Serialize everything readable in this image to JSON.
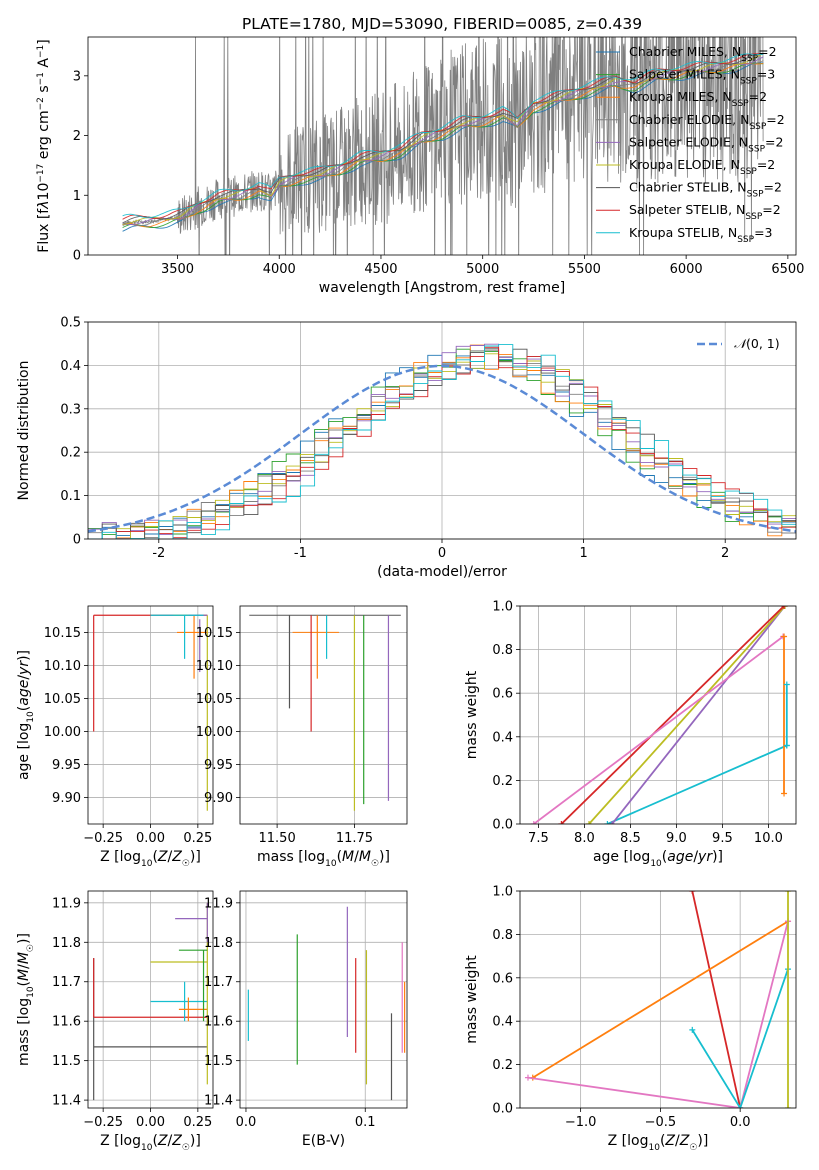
{
  "figure": {
    "title": "PLATE=1780, MJD=53090, FIBERID=0085, z=0.439"
  },
  "colors": {
    "Chabrier MILES": "#1f77b4",
    "Salpeter MILES": "#2ca02c",
    "Kroupa MILES": "#ff7f0e",
    "Chabrier ELODIE": "#808080",
    "Salpeter ELODIE": "#9467bd",
    "Kroupa ELODIE": "#bcbd22",
    "Chabrier STELIB": "#555555",
    "Salpeter STELIB": "#d62728",
    "Kroupa STELIB": "#17becf",
    "data": "#7f7f7f",
    "normal": "#5b8bd6"
  },
  "models": [
    {
      "name": "Chabrier MILES",
      "nssp": "2"
    },
    {
      "name": "Salpeter MILES",
      "nssp": "3"
    },
    {
      "name": "Kroupa MILES",
      "nssp": "2"
    },
    {
      "name": "Chabrier ELODIE",
      "nssp": "2"
    },
    {
      "name": "Salpeter ELODIE",
      "nssp": "2"
    },
    {
      "name": "Kroupa ELODIE",
      "nssp": "2"
    },
    {
      "name": "Chabrier STELIB",
      "nssp": "2"
    },
    {
      "name": "Salpeter STELIB",
      "nssp": "2"
    },
    {
      "name": "Kroupa STELIB",
      "nssp": "3"
    }
  ],
  "chart_data": [
    {
      "id": "spectrum",
      "type": "line",
      "xlabel": "wavelength [Angstrom, rest frame]",
      "ylabel_html": "Flux [f<tspan font-style='italic'>λ</tspan>10<tspan baseline-shift='super' font-size='9'>−17</tspan> erg cm<tspan baseline-shift='super' font-size='9'>−2</tspan> s<tspan baseline-shift='super' font-size='9'>−1</tspan> A<tspan baseline-shift='super' font-size='9'>−1</tspan>]",
      "xlim": [
        3060,
        6540
      ],
      "ylim": [
        0,
        3.65
      ],
      "xticks": [
        3500,
        4000,
        4500,
        5000,
        5500,
        6000,
        6500
      ],
      "yticks": [
        0,
        1,
        2,
        3
      ],
      "grid": false,
      "legend": "top-right",
      "continuum": [
        [
          3200,
          0.5
        ],
        [
          3270,
          0.55
        ],
        [
          3350,
          0.56
        ],
        [
          3450,
          0.6
        ],
        [
          3520,
          0.65
        ],
        [
          3600,
          0.8
        ],
        [
          3700,
          0.95
        ],
        [
          3800,
          1.0
        ],
        [
          3900,
          1.1
        ],
        [
          3960,
          1.0
        ],
        [
          4000,
          1.2
        ],
        [
          4100,
          1.3
        ],
        [
          4200,
          1.35
        ],
        [
          4300,
          1.45
        ],
        [
          4400,
          1.6
        ],
        [
          4500,
          1.65
        ],
        [
          4600,
          1.75
        ],
        [
          4700,
          1.95
        ],
        [
          4800,
          2.05
        ],
        [
          4900,
          2.2
        ],
        [
          5000,
          2.25
        ],
        [
          5100,
          2.35
        ],
        [
          5170,
          2.2
        ],
        [
          5250,
          2.5
        ],
        [
          5350,
          2.6
        ],
        [
          5450,
          2.7
        ],
        [
          5550,
          2.8
        ],
        [
          5650,
          2.9
        ],
        [
          5750,
          2.85
        ],
        [
          5850,
          3.0
        ],
        [
          5950,
          3.05
        ],
        [
          6050,
          3.1
        ],
        [
          6150,
          3.15
        ],
        [
          6250,
          3.2
        ],
        [
          6380,
          3.3
        ]
      ],
      "data_range": [
        3230,
        6380
      ]
    },
    {
      "id": "residuals",
      "type": "line",
      "xlabel": "(data-model)/error",
      "ylabel": "Normed distribution",
      "xlim": [
        -2.5,
        2.5
      ],
      "ylim": [
        0,
        0.5
      ],
      "xticks": [
        -2,
        -1,
        0,
        1,
        2
      ],
      "yticks": [
        0.0,
        0.1,
        0.2,
        0.3,
        0.4,
        0.5
      ],
      "grid": true,
      "legend": "top-right",
      "legend_label": "N(0,1)",
      "hist_peak": 0.42,
      "hist_center": 0.3,
      "hist_sigma": 0.95
    },
    {
      "id": "age_vs_Z",
      "type": "scatter",
      "xlabel_html": "Z [log<tspan baseline-shift='sub' font-size='9'>10</tspan>(<tspan font-style='italic'>Z</tspan>/<tspan font-style='italic'>Z</tspan><tspan baseline-shift='sub' font-size='9'>☉</tspan>)]",
      "ylabel_html": "age  [log<tspan baseline-shift='sub' font-size='9'>10</tspan>(<tspan font-style='italic'>age</tspan>/<tspan font-style='italic'>yr</tspan>)]",
      "xlim": [
        -0.33,
        0.33
      ],
      "ylim": [
        9.86,
        10.19
      ],
      "xticks": [
        -0.25,
        0.0,
        0.25
      ],
      "xticklabels": [
        "−0.25",
        "0.00",
        "0.25"
      ],
      "yticks": [
        9.9,
        9.95,
        10.0,
        10.05,
        10.1,
        10.15
      ],
      "yticklabels": [
        "9.90",
        "9.95",
        "10.00",
        "10.05",
        "10.10",
        "10.15"
      ],
      "grid": true,
      "segments": [
        {
          "model": "Salpeter STELIB",
          "h": [
            -0.3,
            0.3,
            10.176
          ],
          "v": [
            -0.3,
            10.0,
            10.176
          ]
        },
        {
          "model": "Kroupa ELODIE",
          "h": [
            0.12,
            0.3,
            10.176
          ],
          "v": [
            0.3,
            9.88,
            10.176
          ]
        },
        {
          "model": "Kroupa MILES",
          "h": [
            0.14,
            0.3,
            10.15
          ],
          "v": [
            0.23,
            10.08,
            10.176
          ]
        },
        {
          "model": "Salpeter ELODIE",
          "h": [
            0.2,
            0.3,
            10.176
          ],
          "v": [
            0.26,
            10.09,
            10.17
          ]
        },
        {
          "model": "Kroupa STELIB",
          "h": [
            0.0,
            0.28,
            10.176
          ],
          "v": [
            0.18,
            10.11,
            10.176
          ]
        }
      ]
    },
    {
      "id": "age_vs_mass",
      "type": "scatter",
      "xlabel_html": "mass [log<tspan baseline-shift='sub' font-size='9'>10</tspan>(<tspan font-style='italic'>M</tspan>/<tspan font-style='italic'>M</tspan><tspan baseline-shift='sub' font-size='9'>☉</tspan>)]",
      "xlim": [
        11.38,
        11.92
      ],
      "ylim": [
        9.86,
        10.19
      ],
      "xticks": [
        11.5,
        11.75
      ],
      "xticklabels": [
        "11.50",
        "11.75"
      ],
      "yticks": [
        9.9,
        9.95,
        10.0,
        10.05,
        10.1,
        10.15
      ],
      "yticklabels": [
        "9.90",
        "9.95",
        "10.00",
        "10.05",
        "10.10",
        "10.15"
      ],
      "grid": true,
      "verticals": [
        {
          "model": "Chabrier STELIB",
          "x": 11.54,
          "y0": 10.035
        },
        {
          "model": "Salpeter STELIB",
          "x": 11.61,
          "y0": 10.0
        },
        {
          "model": "Kroupa MILES",
          "x": 11.63,
          "y0": 10.08
        },
        {
          "model": "Kroupa STELIB",
          "x": 11.66,
          "y0": 10.11
        },
        {
          "model": "Kroupa ELODIE",
          "x": 11.75,
          "y0": 9.88
        },
        {
          "model": "Salpeter ELODIE",
          "x": 11.86,
          "y0": 9.895
        },
        {
          "model": "Salpeter MILES",
          "x": 11.78,
          "y0": 9.89
        }
      ],
      "top": 10.176
    },
    {
      "id": "massweight_vs_age",
      "type": "line",
      "xlabel_html": "age  [log<tspan baseline-shift='sub' font-size='9'>10</tspan>(<tspan font-style='italic'>age</tspan>/<tspan font-style='italic'>yr</tspan>)]",
      "ylabel": "mass weight",
      "xlim": [
        7.3,
        10.3
      ],
      "ylim": [
        0,
        1.0
      ],
      "xticks": [
        7.5,
        8.0,
        8.5,
        9.0,
        9.5,
        10.0
      ],
      "xticklabels": [
        "7.5",
        "8.0",
        "8.5",
        "9.0",
        "9.5",
        "10.0"
      ],
      "yticks": [
        0,
        0.2,
        0.4,
        0.6,
        0.8,
        1.0
      ],
      "yticklabels": [
        "0.0",
        "0.2",
        "0.4",
        "0.6",
        "0.8",
        "1.0"
      ],
      "grid": true,
      "lines": [
        {
          "model": "Kroupa STELIB",
          "pts": [
            [
              8.25,
              0.0
            ],
            [
              10.2,
              0.36
            ]
          ]
        },
        {
          "model": "Salpeter ELODIE",
          "pts": [
            [
              8.3,
              0.0
            ],
            [
              10.18,
              1.0
            ]
          ]
        },
        {
          "model": "Kroupa ELODIE",
          "pts": [
            [
              8.05,
              0.0
            ],
            [
              10.18,
              1.0
            ]
          ]
        },
        {
          "model": "Salpeter STELIB",
          "pts": [
            [
              7.75,
              0.0
            ],
            [
              10.17,
              1.0
            ]
          ]
        },
        {
          "model": "pink",
          "pts": [
            [
              7.45,
              0.0
            ],
            [
              10.16,
              0.86
            ]
          ]
        },
        {
          "model": "Kroupa MILES",
          "pts": [
            [
              10.17,
              0.86
            ],
            [
              10.17,
              0.14
            ]
          ]
        },
        {
          "model": "Kroupa STELIB",
          "pts": [
            [
              10.2,
              0.64
            ],
            [
              10.2,
              0.36
            ]
          ]
        }
      ]
    },
    {
      "id": "mass_vs_Z",
      "type": "scatter",
      "xlabel_html": "Z [log<tspan baseline-shift='sub' font-size='9'>10</tspan>(<tspan font-style='italic'>Z</tspan>/<tspan font-style='italic'>Z</tspan><tspan baseline-shift='sub' font-size='9'>☉</tspan>)]",
      "ylabel_html": "mass [log<tspan baseline-shift='sub' font-size='9'>10</tspan>(<tspan font-style='italic'>M</tspan>/<tspan font-style='italic'>M</tspan><tspan baseline-shift='sub' font-size='9'>☉</tspan>)]",
      "xlim": [
        -0.33,
        0.33
      ],
      "ylim": [
        11.38,
        11.93
      ],
      "xticks": [
        -0.25,
        0.0,
        0.25
      ],
      "xticklabels": [
        "−0.25",
        "0.00",
        "0.25"
      ],
      "yticks": [
        11.4,
        11.5,
        11.6,
        11.7,
        11.8,
        11.9
      ],
      "yticklabels": [
        "11.4",
        "11.5",
        "11.6",
        "11.7",
        "11.8",
        "11.9"
      ],
      "grid": true,
      "segments": [
        {
          "model": "Chabrier STELIB",
          "h": [
            -0.3,
            0.3,
            11.535
          ],
          "v": [
            -0.3,
            11.4,
            11.76
          ]
        },
        {
          "model": "Salpeter STELIB",
          "h": [
            -0.3,
            0.3,
            11.61
          ],
          "v": [
            -0.3,
            11.61,
            11.76
          ]
        },
        {
          "model": "Kroupa STELIB",
          "h": [
            0.0,
            0.3,
            11.65
          ],
          "v": [
            0.18,
            11.6,
            11.7
          ]
        },
        {
          "model": "Kroupa MILES",
          "h": [
            0.15,
            0.3,
            11.63
          ],
          "v": [
            0.2,
            11.6,
            11.66
          ]
        },
        {
          "model": "Kroupa ELODIE",
          "h": [
            0.0,
            0.3,
            11.75
          ],
          "v": [
            0.3,
            11.44,
            11.9
          ]
        },
        {
          "model": "Salpeter ELODIE",
          "h": [
            0.13,
            0.3,
            11.86
          ],
          "v": [
            0.3,
            11.8,
            11.9
          ]
        },
        {
          "model": "Salpeter MILES",
          "h": [
            0.15,
            0.3,
            11.78
          ],
          "v": [
            0.28,
            11.6,
            11.78
          ]
        }
      ]
    },
    {
      "id": "mass_vs_EBV",
      "type": "scatter",
      "xlabel": "E(B-V)",
      "xlim": [
        -0.005,
        0.135
      ],
      "ylim": [
        11.38,
        11.93
      ],
      "xticks": [
        0.0,
        0.1
      ],
      "xticklabels": [
        "0.0",
        "0.1"
      ],
      "yticks": [
        11.4,
        11.5,
        11.6,
        11.7,
        11.8,
        11.9
      ],
      "yticklabels": [
        "11.4",
        "11.5",
        "11.6",
        "11.7",
        "11.8",
        "11.9"
      ],
      "grid": true,
      "verticals": [
        {
          "model": "Kroupa STELIB",
          "x": 0.002,
          "y0": 11.55,
          "y1": 11.68
        },
        {
          "model": "Salpeter MILES",
          "x": 0.043,
          "y0": 11.49,
          "y1": 11.82
        },
        {
          "model": "Salpeter ELODIE",
          "x": 0.085,
          "y0": 11.56,
          "y1": 11.89
        },
        {
          "model": "Salpeter STELIB",
          "x": 0.092,
          "y0": 11.52,
          "y1": 11.76
        },
        {
          "model": "Kroupa ELODIE",
          "x": 0.101,
          "y0": 11.44,
          "y1": 11.78
        },
        {
          "model": "Chabrier STELIB",
          "x": 0.122,
          "y0": 11.4,
          "y1": 11.62
        },
        {
          "model": "pink",
          "x": 0.131,
          "y0": 11.52,
          "y1": 11.8
        },
        {
          "model": "Kroupa MILES",
          "x": 0.133,
          "y0": 11.52,
          "y1": 11.7
        }
      ]
    },
    {
      "id": "massweight_vs_Z",
      "type": "line",
      "xlabel_html": "Z [log<tspan baseline-shift='sub' font-size='9'>10</tspan>(<tspan font-style='italic'>Z</tspan>/<tspan font-style='italic'>Z</tspan><tspan baseline-shift='sub' font-size='9'>☉</tspan>)]",
      "ylabel": "mass weight",
      "xlim": [
        -1.38,
        0.35
      ],
      "ylim": [
        0,
        1.0
      ],
      "xticks": [
        -1.0,
        -0.5,
        0.0
      ],
      "xticklabels": [
        "−1.0",
        "−0.5",
        "0.0"
      ],
      "yticks": [
        0,
        0.2,
        0.4,
        0.6,
        0.8,
        1.0
      ],
      "yticklabels": [
        "0.0",
        "0.2",
        "0.4",
        "0.6",
        "0.8",
        "1.0"
      ],
      "grid": true,
      "lines": [
        {
          "model": "Salpeter STELIB",
          "pts": [
            [
              -0.3,
              1.0
            ],
            [
              0.0,
              0.0
            ]
          ]
        },
        {
          "model": "Kroupa MILES",
          "pts": [
            [
              -1.3,
              0.14
            ],
            [
              0.3,
              0.86
            ]
          ]
        },
        {
          "model": "pink",
          "pts": [
            [
              -1.33,
              0.14
            ],
            [
              0.0,
              0.0
            ],
            [
              0.3,
              0.86
            ]
          ]
        },
        {
          "model": "Kroupa STELIB",
          "pts": [
            [
              -0.3,
              0.36
            ],
            [
              0.0,
              0.0
            ],
            [
              0.3,
              0.64
            ]
          ]
        },
        {
          "model": "Kroupa ELODIE",
          "pts": [
            [
              0.3,
              0.0
            ],
            [
              0.3,
              1.0
            ]
          ]
        }
      ]
    }
  ]
}
